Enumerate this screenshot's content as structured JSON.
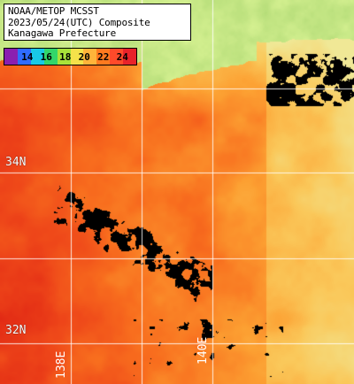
{
  "title": {
    "line1": "NOAA/METOP MCSST",
    "line2": "2023/05/24(UTC) Composite",
    "line3": "Kanagawa Prefecture"
  },
  "colorbar": {
    "labels": [
      "14",
      "16",
      "18",
      "20",
      "22",
      "24"
    ],
    "colors": [
      "#8a1fb0",
      "#2f6cff",
      "#19c9e6",
      "#32d66a",
      "#a8e23a",
      "#f4e24a",
      "#ffb43a",
      "#ff7a1f",
      "#ff4a2a",
      "#e8232a"
    ]
  },
  "grid_labels": {
    "lat_34": "34N",
    "lat_32": "32N",
    "lon_138": "138E",
    "lon_140": "140E"
  },
  "chart_data": {
    "type": "heatmap",
    "title": "NOAA/METOP MCSST 2023/05/24(UTC) Composite Kanagawa Prefecture",
    "value_unit": "°C",
    "color_scale_range": [
      13,
      25
    ],
    "legend": "top-left",
    "grid": true
  }
}
